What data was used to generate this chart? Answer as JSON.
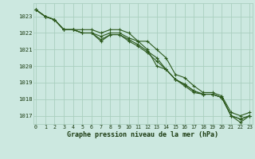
{
  "title": "Graphe pression niveau de la mer (hPa)",
  "bg_color": "#cce8e0",
  "grid_color": "#aacfbf",
  "line_color": "#2d5a1e",
  "x_ticks": [
    0,
    1,
    2,
    3,
    4,
    5,
    6,
    7,
    8,
    9,
    10,
    11,
    12,
    13,
    14,
    15,
    16,
    17,
    18,
    19,
    20,
    21,
    22,
    23
  ],
  "ylim": [
    1016.5,
    1023.8
  ],
  "xlim": [
    -0.3,
    23.3
  ],
  "yticks": [
    1017,
    1018,
    1019,
    1020,
    1021,
    1022,
    1023
  ],
  "series": [
    [
      1023.4,
      1023.0,
      1022.8,
      1022.2,
      1022.2,
      1022.0,
      1022.0,
      1021.5,
      1021.9,
      1021.9,
      1021.6,
      1021.3,
      1020.9,
      1020.5,
      1019.8,
      1019.2,
      1018.9,
      1018.5,
      1018.3,
      1018.3,
      1018.1,
      1017.0,
      1016.8,
      1017.0
    ],
    [
      1023.4,
      1023.0,
      1022.8,
      1022.2,
      1022.2,
      1022.0,
      1022.0,
      1021.8,
      1022.0,
      1022.0,
      1021.7,
      1021.5,
      1021.0,
      1020.0,
      1019.8,
      1019.2,
      1018.8,
      1018.4,
      1018.3,
      1018.3,
      1018.1,
      1017.0,
      1016.6,
      1017.0
    ],
    [
      1023.4,
      1023.0,
      1022.8,
      1022.2,
      1022.2,
      1022.0,
      1022.0,
      1021.6,
      1021.9,
      1021.9,
      1021.5,
      1021.2,
      1020.8,
      1020.3,
      1019.8,
      1019.2,
      1018.9,
      1018.5,
      1018.3,
      1018.3,
      1018.1,
      1017.0,
      1016.8,
      1017.0
    ],
    [
      1023.4,
      1023.0,
      1022.8,
      1022.2,
      1022.2,
      1022.2,
      1022.2,
      1022.0,
      1022.2,
      1022.2,
      1022.0,
      1021.5,
      1021.5,
      1021.0,
      1020.5,
      1019.5,
      1019.3,
      1018.8,
      1018.4,
      1018.4,
      1018.2,
      1017.2,
      1017.0,
      1017.2
    ]
  ]
}
